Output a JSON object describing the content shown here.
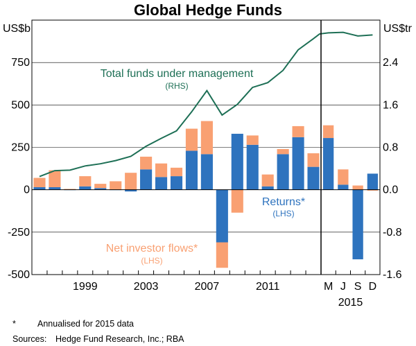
{
  "chart_data": {
    "type": "bar",
    "title": "Global Hedge Funds",
    "left_unit": "US$b",
    "right_unit": "US$tr",
    "left_axis": {
      "min": -500,
      "max": 1000,
      "ticks": [
        -500,
        -250,
        0,
        250,
        500,
        750
      ],
      "tick_labels": [
        "-500",
        "-250",
        "0",
        "250",
        "500",
        "750"
      ]
    },
    "right_axis": {
      "min": -1.6,
      "max": 3.2,
      "ticks": [
        -1.6,
        -0.8,
        0,
        0.8,
        1.6,
        2.4
      ],
      "tick_labels": [
        "-1.6",
        "-0.8",
        "0.0",
        "0.8",
        "1.6",
        "2.4"
      ]
    },
    "grid": true,
    "annual_categories": [
      "1996",
      "1997",
      "1998",
      "1999",
      "2000",
      "2001",
      "2002",
      "2003",
      "2004",
      "2005",
      "2006",
      "2007",
      "2008",
      "2009",
      "2010",
      "2011",
      "2012",
      "2013",
      "2014"
    ],
    "annual_x_labels": [
      "1999",
      "2003",
      "2007",
      "2011"
    ],
    "quarter_x_labels": [
      "M",
      "J",
      "S",
      "D"
    ],
    "quarter_year_label": "2015",
    "series": [
      {
        "name": "Returns*",
        "sublabel": "(LHS)",
        "axis": "left",
        "color": "#2e73be",
        "annual": [
          15,
          15,
          0,
          20,
          10,
          0,
          -10,
          120,
          75,
          80,
          230,
          210,
          -310,
          330,
          265,
          20,
          210,
          310,
          135
        ],
        "quarters": [
          305,
          30,
          -410,
          95
        ]
      },
      {
        "name": "Net investor flows*",
        "sublabel": "(LHS)",
        "axis": "left",
        "color": "#f9a072",
        "annual": [
          55,
          100,
          5,
          60,
          25,
          50,
          100,
          75,
          80,
          50,
          130,
          195,
          -150,
          -135,
          55,
          70,
          30,
          65,
          80
        ],
        "quarters": [
          75,
          90,
          25,
          -5
        ]
      },
      {
        "name": "Total funds under management",
        "sublabel": "(RHS)",
        "axis": "right",
        "color": "#1d6f55",
        "points": [
          {
            "x": 1996.0,
            "y": 0.25
          },
          {
            "x": 1997.0,
            "y": 0.36
          },
          {
            "x": 1998.0,
            "y": 0.37
          },
          {
            "x": 1999.0,
            "y": 0.45
          },
          {
            "x": 2000.0,
            "y": 0.49
          },
          {
            "x": 2001.0,
            "y": 0.55
          },
          {
            "x": 2002.0,
            "y": 0.63
          },
          {
            "x": 2003.0,
            "y": 0.82
          },
          {
            "x": 2004.0,
            "y": 0.97
          },
          {
            "x": 2005.0,
            "y": 1.11
          },
          {
            "x": 2006.0,
            "y": 1.47
          },
          {
            "x": 2007.0,
            "y": 1.87
          },
          {
            "x": 2008.0,
            "y": 1.41
          },
          {
            "x": 2009.0,
            "y": 1.61
          },
          {
            "x": 2010.0,
            "y": 1.93
          },
          {
            "x": 2011.0,
            "y": 2.02
          },
          {
            "x": 2012.0,
            "y": 2.25
          },
          {
            "x": 2013.0,
            "y": 2.64
          },
          {
            "x": 2014.0,
            "y": 2.85
          },
          {
            "x": 2014.75,
            "y": 2.94
          },
          {
            "x": 2015.0,
            "y": 2.96
          },
          {
            "x": 2015.25,
            "y": 2.97
          },
          {
            "x": 2015.5,
            "y": 2.9
          },
          {
            "x": 2015.75,
            "y": 2.92
          }
        ]
      }
    ]
  },
  "footnote": {
    "mark": "*",
    "text": "Annualised for 2015 data"
  },
  "sources": {
    "label": "Sources:",
    "text": "Hedge Fund Research, Inc.; RBA"
  }
}
